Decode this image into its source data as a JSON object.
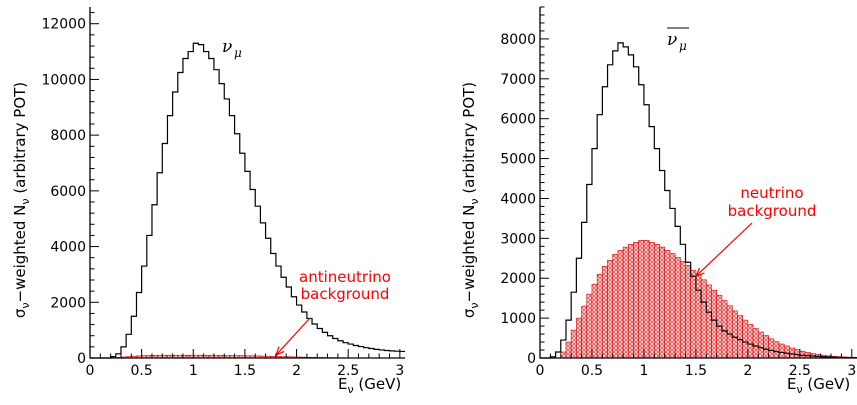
{
  "chart_data": [
    {
      "type": "histogram",
      "id": "left",
      "title_symbol": "ν",
      "title_subscript": "μ",
      "xlabel": "E",
      "xlabel_sub": "ν",
      "xlabel_unit": " (GeV)",
      "ylabel": "σ",
      "ylabel_sub": "ν",
      "ylabel_mid": "−weighted N",
      "ylabel_sub2": "ν",
      "ylabel_end": " (arbitrary POT)",
      "xlim": [
        0,
        3.05
      ],
      "ylim": [
        0,
        12600
      ],
      "xticks": [
        0,
        0.5,
        1,
        1.5,
        2,
        2.5,
        3
      ],
      "xtick_labels": [
        "0",
        "0.5",
        "1",
        "1.5",
        "2",
        "2.5",
        "3"
      ],
      "yticks": [
        0,
        2000,
        4000,
        6000,
        8000,
        10000,
        12000
      ],
      "ytick_labels": [
        "0",
        "2000",
        "4000",
        "6000",
        "8000",
        "10000",
        "12000"
      ],
      "bin_width": 0.05,
      "series": [
        {
          "style": "outline",
          "color": "#000000",
          "values": [
            0,
            0,
            0,
            0,
            50,
            150,
            400,
            850,
            1500,
            2350,
            3300,
            4400,
            5500,
            6650,
            7700,
            8700,
            9550,
            10250,
            10750,
            11000,
            11300,
            11250,
            11000,
            10750,
            10350,
            9850,
            9300,
            8700,
            8050,
            7350,
            6700,
            6050,
            5450,
            4850,
            4300,
            3750,
            3300,
            2900,
            2550,
            2200,
            1900,
            1650,
            1420,
            1220,
            1060,
            920,
            800,
            700,
            620,
            550,
            500,
            450,
            410,
            370,
            340,
            310,
            290,
            270,
            255,
            245,
            235
          ]
        },
        {
          "style": "hatched",
          "color": "#ff0000",
          "values": [
            0,
            0,
            0,
            0,
            10,
            20,
            35,
            50,
            65,
            75,
            85,
            90,
            95,
            100,
            100,
            100,
            100,
            100,
            100,
            100,
            100,
            100,
            100,
            100,
            95,
            95,
            90,
            90,
            85,
            85,
            80,
            80,
            75,
            70,
            65,
            60,
            55,
            50,
            45,
            40,
            35,
            30,
            25,
            22,
            20,
            18,
            15,
            12,
            10,
            8,
            6,
            5,
            4,
            3,
            3,
            2,
            2,
            1,
            1,
            1,
            1
          ]
        }
      ],
      "annotation": {
        "lines": [
          "antineutrino",
          "background"
        ],
        "arrow_target": [
          1.8,
          100
        ]
      }
    },
    {
      "type": "histogram",
      "id": "right",
      "title_symbol": "ν",
      "title_subscript": "μ",
      "title_overline": true,
      "xlabel": "E",
      "xlabel_sub": "ν",
      "xlabel_unit": " (GeV)",
      "ylabel": "σ",
      "ylabel_sub": "ν",
      "ylabel_mid": "−weighted N",
      "ylabel_sub2": "ν",
      "ylabel_end": " (arbitrary POT)",
      "xlim": [
        0,
        3.05
      ],
      "ylim": [
        0,
        8800
      ],
      "xticks": [
        0,
        0.5,
        1,
        1.5,
        2,
        2.5,
        3
      ],
      "xtick_labels": [
        "0",
        "0.5",
        "1",
        "1.5",
        "2",
        "2.5",
        "3"
      ],
      "yticks": [
        0,
        1000,
        2000,
        3000,
        4000,
        5000,
        6000,
        7000,
        8000
      ],
      "ytick_labels": [
        "0",
        "1000",
        "2000",
        "3000",
        "4000",
        "5000",
        "6000",
        "7000",
        "8000"
      ],
      "bin_width": 0.05,
      "series": [
        {
          "style": "outline",
          "color": "#000000",
          "values": [
            0,
            0,
            30,
            150,
            450,
            950,
            1650,
            2500,
            3400,
            4350,
            5250,
            6100,
            6800,
            7350,
            7700,
            7900,
            7800,
            7600,
            7300,
            6850,
            6350,
            5800,
            5250,
            4700,
            4200,
            3750,
            3300,
            2850,
            2400,
            2050,
            1700,
            1400,
            1150,
            950,
            800,
            680,
            600,
            520,
            460,
            400,
            350,
            300,
            260,
            220,
            190,
            160,
            140,
            120,
            100,
            85,
            70,
            60,
            50,
            40,
            32,
            25,
            20,
            15,
            10,
            6,
            3
          ]
        },
        {
          "style": "hatched",
          "color": "#ff0000",
          "values": [
            0,
            0,
            0,
            0,
            150,
            400,
            700,
            1000,
            1300,
            1600,
            1850,
            2100,
            2300,
            2450,
            2600,
            2700,
            2780,
            2850,
            2900,
            2950,
            2950,
            2900,
            2850,
            2780,
            2700,
            2620,
            2520,
            2420,
            2320,
            2200,
            2080,
            1960,
            1830,
            1700,
            1570,
            1440,
            1310,
            1180,
            1060,
            950,
            840,
            740,
            650,
            560,
            480,
            410,
            350,
            300,
            250,
            210,
            170,
            140,
            110,
            90,
            70,
            55,
            45,
            35,
            28,
            22,
            18
          ]
        }
      ],
      "annotation": {
        "lines": [
          "neutrino",
          "background"
        ],
        "arrow_target": [
          1.5,
          2050
        ]
      }
    }
  ]
}
